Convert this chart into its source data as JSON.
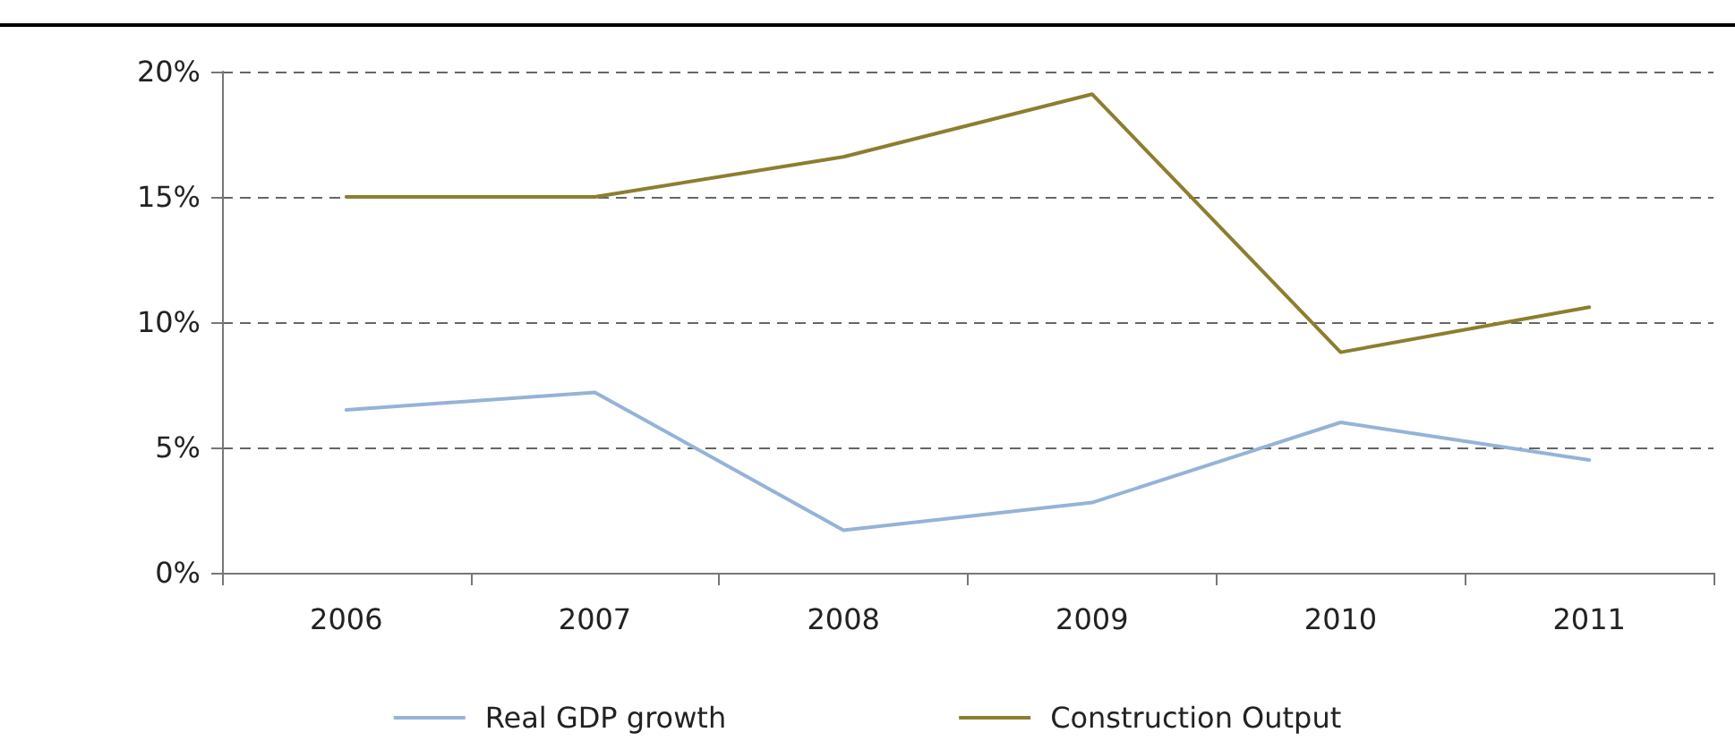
{
  "chart_data": {
    "type": "line",
    "categories": [
      "2006",
      "2007",
      "2008",
      "2009",
      "2010",
      "2011"
    ],
    "series": [
      {
        "name": "Real GDP growth",
        "color": "#95b3d7",
        "values": [
          6.5,
          7.2,
          1.7,
          2.8,
          6.0,
          4.5
        ]
      },
      {
        "name": "Construction Output",
        "color": "#8c7e2f",
        "values": [
          15.0,
          15.0,
          16.6,
          19.1,
          8.8,
          10.6
        ]
      }
    ],
    "ylim": [
      0,
      20
    ],
    "yticks": [
      {
        "value": 0,
        "label": "0%"
      },
      {
        "value": 5,
        "label": "5%"
      },
      {
        "value": 10,
        "label": "10%"
      },
      {
        "value": 15,
        "label": "15%"
      },
      {
        "value": 20,
        "label": "20%"
      }
    ],
    "grid": "y",
    "legend": "bottom",
    "marker": "none",
    "line_style": "solid"
  }
}
